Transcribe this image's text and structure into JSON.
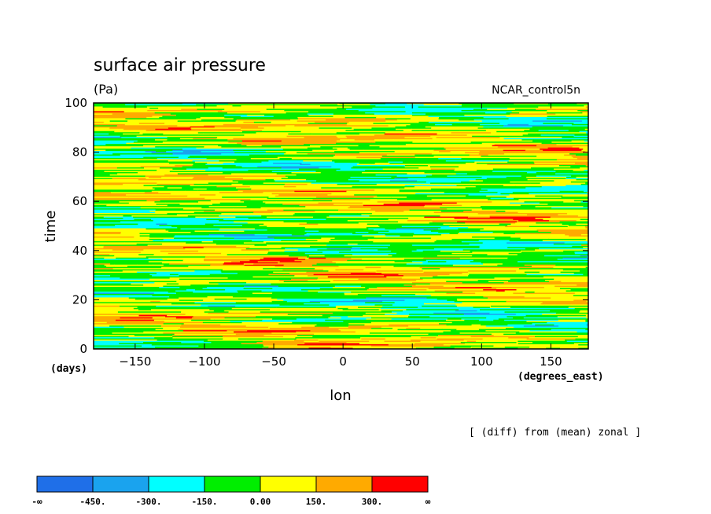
{
  "chart_data": {
    "type": "heatmap",
    "title": "surface air pressure",
    "units": "(Pa)",
    "run_label": "NCAR_control5n",
    "xlabel": "lon",
    "ylabel": "time",
    "xunits": "(degrees_east)",
    "yunits": "(days)",
    "xlim": [
      -180,
      177
    ],
    "ylim": [
      0,
      100
    ],
    "xticks": [
      -150,
      -100,
      -50,
      0,
      50,
      100,
      150
    ],
    "yticks": [
      0,
      20,
      40,
      60,
      80,
      100
    ],
    "annotation": "[ (diff) from (mean) zonal ]",
    "colorbar": {
      "labels": [
        "-∞",
        "-450.",
        "-300.",
        "-150.",
        "0.00",
        "150.",
        "300.",
        "∞"
      ],
      "colors": [
        "#1f6fe8",
        "#1aa3ee",
        "#00ffff",
        "#00ee00",
        "#ffff00",
        "#ffaa00",
        "#ff0000"
      ]
    }
  }
}
